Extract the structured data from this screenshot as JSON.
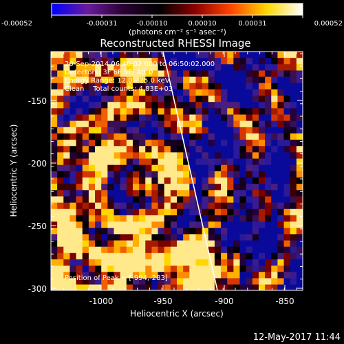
{
  "colorbar": {
    "tick_labels": [
      "-0.00052",
      "-0.00031",
      "-0.00010",
      "0.00010",
      "0.00031",
      "0.00052"
    ],
    "unit_label": "(photons cm⁻² s⁻¹ asec⁻²)"
  },
  "plot": {
    "title": "Reconstructed RHESSI Image",
    "xlabel": "Heliocentric X (arcsec)",
    "ylabel": "Heliocentric Y (arcsec)",
    "x_ticks": [
      "-1000",
      "-950",
      "-900",
      "-850"
    ],
    "y_ticks": [
      "-150",
      "-200",
      "-250",
      "-300"
    ]
  },
  "annotations": {
    "time_range": "20-Sep-2014 06:40:02.000 to 06:50:02.000",
    "detectors": "Detectors: 3F 6F 9F, Att 0",
    "energy_range": "Energy Range: 12.0 - 25.0 keV",
    "clean_counts": "Clean    Total counts: 4.83E+03",
    "peak_position": "Position of Peak = [-994,-283]"
  },
  "footer": {
    "timestamp": "12-May-2017 11:44"
  },
  "colors": {
    "colorbar_stops": [
      "#0000ff",
      "#6a1b9a",
      "#2a0033",
      "#000000",
      "#8b0000",
      "#ff4500",
      "#ffd700",
      "#ffffff"
    ],
    "limb_line": "#ffffff",
    "background": "#000000"
  }
}
